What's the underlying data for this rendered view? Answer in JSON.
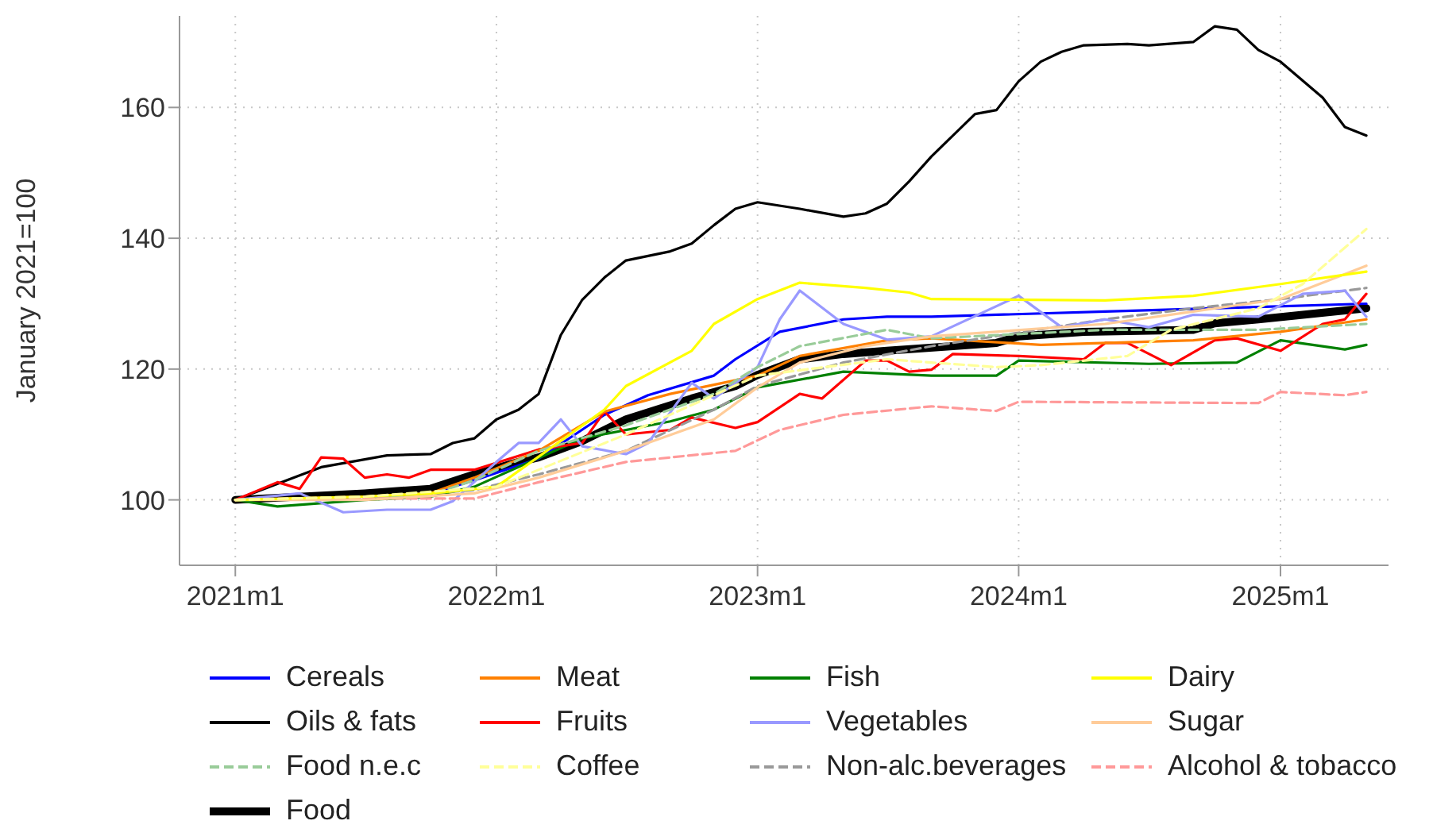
{
  "chart_data": {
    "type": "line",
    "ylabel": "January 2021=100",
    "xlim": [
      "2020-10-15",
      "2025-06-01"
    ],
    "xticks": [
      {
        "value": "2021-01",
        "label": "2021m1"
      },
      {
        "value": "2022-01",
        "label": "2022m1"
      },
      {
        "value": "2023-01",
        "label": "2023m1"
      },
      {
        "value": "2024-01",
        "label": "2024m1"
      },
      {
        "value": "2025-01",
        "label": "2025m1"
      }
    ],
    "ylim": [
      90,
      174
    ],
    "yticks": [
      100,
      120,
      140,
      160
    ],
    "grid": true,
    "legend": "bottom",
    "marker": "none",
    "series": [
      {
        "name": "Cereals",
        "color": "#0000ff",
        "line_style": "solid",
        "x": [
          "2021-01",
          "2021-07",
          "2021-10",
          "2021-12",
          "2022-03",
          "2022-06",
          "2022-08",
          "2022-11",
          "2022-12",
          "2023-02",
          "2023-05",
          "2023-07",
          "2023-09",
          "2024-05",
          "2024-12",
          "2025-05"
        ],
        "values": [
          100,
          100.5,
          101,
          103,
          106.3,
          113,
          116,
          119,
          121.5,
          125.7,
          127.6,
          128,
          128,
          128.8,
          129.5,
          130
        ]
      },
      {
        "name": "Meat",
        "color": "#ff8000",
        "line_style": "solid",
        "x": [
          "2021-01",
          "2021-07",
          "2021-10",
          "2021-12",
          "2022-03",
          "2022-06",
          "2022-09",
          "2023-01",
          "2023-03",
          "2023-07",
          "2023-09",
          "2024-02",
          "2024-09",
          "2025-01",
          "2025-05"
        ],
        "values": [
          100,
          100.5,
          101,
          103.4,
          107.5,
          113.5,
          116.2,
          119,
          122,
          124.4,
          124.7,
          123.7,
          124.4,
          125.7,
          127.6
        ]
      },
      {
        "name": "Fish",
        "color": "#008000",
        "line_style": "solid",
        "x": [
          "2021-01",
          "2021-03",
          "2021-07",
          "2021-10",
          "2021-12",
          "2022-05",
          "2022-09",
          "2022-11",
          "2023-01",
          "2023-05",
          "2023-09",
          "2023-12",
          "2024-01",
          "2024-07",
          "2024-11",
          "2025-01",
          "2025-04",
          "2025-05"
        ],
        "values": [
          100,
          99,
          100,
          100.5,
          102,
          109.4,
          112,
          113.8,
          117.2,
          119.6,
          119,
          119,
          121.3,
          120.8,
          121,
          124.4,
          123,
          123.7
        ]
      },
      {
        "name": "Dairy",
        "color": "#ffff00",
        "line_style": "solid",
        "x": [
          "2021-01",
          "2021-07",
          "2021-10",
          "2022-01",
          "2022-06",
          "2022-07",
          "2022-10",
          "2022-11",
          "2023-01",
          "2023-03",
          "2023-06",
          "2023-08",
          "2023-09",
          "2024-05",
          "2024-09",
          "2025-01",
          "2025-05"
        ],
        "values": [
          100,
          100.5,
          101,
          102,
          113.8,
          117.4,
          122.8,
          126.9,
          130.7,
          133.2,
          132.4,
          131.7,
          130.7,
          130.5,
          131.2,
          133,
          134.9
        ]
      },
      {
        "name": "Oils & fats",
        "color": "#000000",
        "line_style": "solid",
        "x": [
          "2021-01",
          "2021-05",
          "2021-08",
          "2021-10",
          "2021-11",
          "2021-12",
          "2022-01",
          "2022-02",
          "2022-03",
          "2022-04",
          "2022-05",
          "2022-06",
          "2022-07",
          "2022-09",
          "2022-10",
          "2022-11",
          "2022-12",
          "2023-01",
          "2023-03",
          "2023-05",
          "2023-06",
          "2023-07",
          "2023-08",
          "2023-09",
          "2023-11",
          "2023-12",
          "2024-01",
          "2024-02",
          "2024-03",
          "2024-04",
          "2024-06",
          "2024-07",
          "2024-09",
          "2024-10",
          "2024-11",
          "2024-12",
          "2025-01",
          "2025-03",
          "2025-04",
          "2025-05"
        ],
        "values": [
          100,
          105,
          106.8,
          107,
          108.7,
          109.4,
          112.3,
          113.8,
          116.2,
          125.2,
          130.6,
          134,
          136.6,
          138,
          139.2,
          142,
          144.5,
          145.5,
          144.5,
          143.3,
          143.8,
          145.3,
          148.7,
          152.5,
          159,
          159.6,
          164,
          167,
          168.5,
          169.5,
          169.7,
          169.5,
          170,
          172.4,
          171.9,
          168.8,
          167,
          161.5,
          157,
          155.7
        ]
      },
      {
        "name": "Fruits",
        "color": "#ff0000",
        "line_style": "solid",
        "x": [
          "2021-01",
          "2021-03",
          "2021-04",
          "2021-05",
          "2021-06",
          "2021-07",
          "2021-08",
          "2021-09",
          "2021-10",
          "2021-12",
          "2022-03",
          "2022-05",
          "2022-06",
          "2022-07",
          "2022-09",
          "2022-10",
          "2022-12",
          "2023-01",
          "2023-03",
          "2023-04",
          "2023-06",
          "2023-07",
          "2023-08",
          "2023-09",
          "2023-10",
          "2024-01",
          "2024-04",
          "2024-05",
          "2024-06",
          "2024-08",
          "2024-10",
          "2024-11",
          "2025-01",
          "2025-03",
          "2025-04",
          "2025-05"
        ],
        "values": [
          100,
          102.7,
          101.7,
          106.5,
          106.3,
          103.4,
          103.9,
          103.4,
          104.6,
          104.6,
          107.7,
          108.7,
          113.5,
          110,
          110.7,
          112.6,
          111,
          111.9,
          116.2,
          115.5,
          121.3,
          121.3,
          119.6,
          119.9,
          122.3,
          122,
          121.5,
          124,
          124,
          120.6,
          124.4,
          124.7,
          122.8,
          126.9,
          127.6,
          131.5
        ]
      },
      {
        "name": "Vegetables",
        "color": "#9999ff",
        "line_style": "solid",
        "x": [
          "2021-01",
          "2021-04",
          "2021-06",
          "2021-08",
          "2021-10",
          "2021-11",
          "2022-01",
          "2022-02",
          "2022-03",
          "2022-04",
          "2022-05",
          "2022-07",
          "2022-08",
          "2022-10",
          "2022-11",
          "2023-01",
          "2023-02",
          "2023-03",
          "2023-05",
          "2023-07",
          "2023-09",
          "2024-01",
          "2024-03",
          "2024-05",
          "2024-07",
          "2024-09",
          "2024-12",
          "2025-02",
          "2025-04",
          "2025-05"
        ],
        "values": [
          100,
          101,
          98.1,
          98.5,
          98.5,
          99.8,
          105.8,
          108.7,
          108.7,
          112.3,
          108.2,
          107,
          108.7,
          117.9,
          115.5,
          120.3,
          127.6,
          132,
          126.9,
          124.5,
          125,
          131.2,
          126.4,
          127.6,
          126.4,
          128.3,
          128,
          131.5,
          132,
          128
        ]
      },
      {
        "name": "Sugar",
        "color": "#ffcc99",
        "line_style": "solid",
        "x": [
          "2021-01",
          "2021-07",
          "2021-12",
          "2022-03",
          "2022-07",
          "2022-11",
          "2023-01",
          "2023-03",
          "2023-06",
          "2023-09",
          "2024-05",
          "2024-09",
          "2025-01",
          "2025-05"
        ],
        "values": [
          100,
          100,
          101,
          103.4,
          107.5,
          112.3,
          117.2,
          121,
          123.5,
          125,
          126.9,
          128.8,
          130.7,
          135.8
        ]
      },
      {
        "name": "Food n.e.c",
        "color": "#99cc99",
        "line_style": "dashed",
        "x": [
          "2021-01",
          "2021-07",
          "2021-10",
          "2021-12",
          "2022-03",
          "2022-07",
          "2022-11",
          "2023-01",
          "2023-03",
          "2023-07",
          "2023-09",
          "2024-05",
          "2024-12",
          "2025-05"
        ],
        "values": [
          100,
          100.3,
          100.8,
          103,
          107.5,
          111.4,
          116.2,
          120.3,
          123.5,
          126,
          124.7,
          126,
          126,
          126.9
        ]
      },
      {
        "name": "Coffee",
        "color": "#ffff99",
        "line_style": "dashed",
        "x": [
          "2021-01",
          "2021-07",
          "2022-01",
          "2022-07",
          "2023-01",
          "2023-07",
          "2023-09",
          "2023-12",
          "2024-02",
          "2024-06",
          "2024-08",
          "2024-12",
          "2025-02",
          "2025-05"
        ],
        "values": [
          100,
          100.5,
          102,
          110,
          119,
          121.5,
          121,
          120.3,
          120.6,
          122,
          126,
          129.3,
          133,
          141.4
        ]
      },
      {
        "name": "Non-alc.beverages",
        "color": "#999999",
        "line_style": "dashed",
        "x": [
          "2021-01",
          "2021-07",
          "2021-12",
          "2022-03",
          "2022-07",
          "2022-11",
          "2023-01",
          "2023-05",
          "2023-09",
          "2024-05",
          "2024-09",
          "2025-01",
          "2025-05"
        ],
        "values": [
          100,
          100.3,
          101.5,
          103.9,
          107.5,
          113.8,
          117.4,
          121,
          123.5,
          127.6,
          129.3,
          130.7,
          132.4
        ]
      },
      {
        "name": "Alcohol & tobacco",
        "color": "#ff9999",
        "line_style": "dashed",
        "x": [
          "2021-01",
          "2021-07",
          "2021-12",
          "2022-03",
          "2022-07",
          "2022-12",
          "2023-02",
          "2023-05",
          "2023-09",
          "2023-12",
          "2024-01",
          "2024-12",
          "2025-01",
          "2025-04",
          "2025-05"
        ],
        "values": [
          100,
          100.2,
          100.2,
          102.7,
          105.8,
          107.5,
          110.7,
          113,
          114.3,
          113.6,
          115,
          114.8,
          116.5,
          116,
          116.5
        ]
      },
      {
        "name": "Food",
        "color": "#000000",
        "line_style": "solid",
        "x": [
          "2021-01",
          "2021-07",
          "2021-10",
          "2021-12",
          "2022-02",
          "2022-03",
          "2022-05",
          "2022-07",
          "2022-10",
          "2022-12",
          "2023-01",
          "2023-03",
          "2023-05",
          "2023-07",
          "2023-10",
          "2023-12",
          "2024-01",
          "2024-04",
          "2024-09",
          "2024-10",
          "2024-12",
          "2025-02",
          "2025-05"
        ],
        "values": [
          100,
          101,
          101.7,
          103.9,
          105.8,
          106.5,
          109,
          112.3,
          115.5,
          117.4,
          119.1,
          121.5,
          122.3,
          122.8,
          123.5,
          124,
          125,
          125.7,
          126,
          127,
          127.6,
          128.3,
          129.3
        ]
      }
    ]
  }
}
